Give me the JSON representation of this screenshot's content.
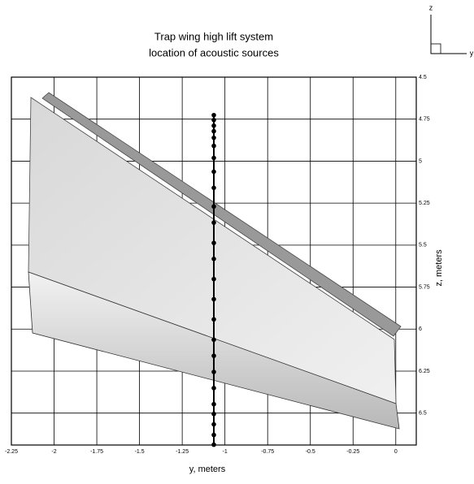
{
  "chart_data": {
    "type": "scatter",
    "title": [
      "Trap wing high lift system",
      "location of acoustic sources"
    ],
    "x_label": "y, meters",
    "y_label": "z, meters",
    "triad_labels": [
      "z",
      "y"
    ],
    "x": [
      -1.065,
      -1.065,
      -1.065,
      -1.065,
      -1.065,
      -1.065,
      -1.065,
      -1.065,
      -1.065,
      -1.065,
      -1.065,
      -1.065,
      -1.065,
      -1.065,
      -1.065,
      -1.065,
      -1.065,
      -1.065,
      -1.065,
      -1.065,
      -1.065,
      -1.065,
      -1.065,
      -1.065,
      -1.065
    ],
    "values": [
      4.726,
      4.755,
      4.789,
      4.822,
      4.861,
      4.909,
      4.981,
      5.063,
      5.159,
      5.27,
      5.366,
      5.487,
      5.582,
      5.702,
      5.822,
      5.942,
      6.063,
      6.159,
      6.255,
      6.351,
      6.447,
      6.505,
      6.567,
      6.63,
      6.688
    ],
    "color": "#000000",
    "xlim": [
      -2.25,
      0.12
    ],
    "xticks": [
      -2.25,
      -2,
      -1.75,
      -1.5,
      -1.25,
      -1,
      -0.75,
      -0.5,
      -0.25,
      0
    ],
    "ylim": [
      4.5,
      6.69
    ],
    "y_inverted": true,
    "yticks": [
      4.5,
      4.75,
      5,
      5.25,
      5.5,
      5.75,
      6,
      6.25,
      6.5
    ],
    "grid": true
  }
}
